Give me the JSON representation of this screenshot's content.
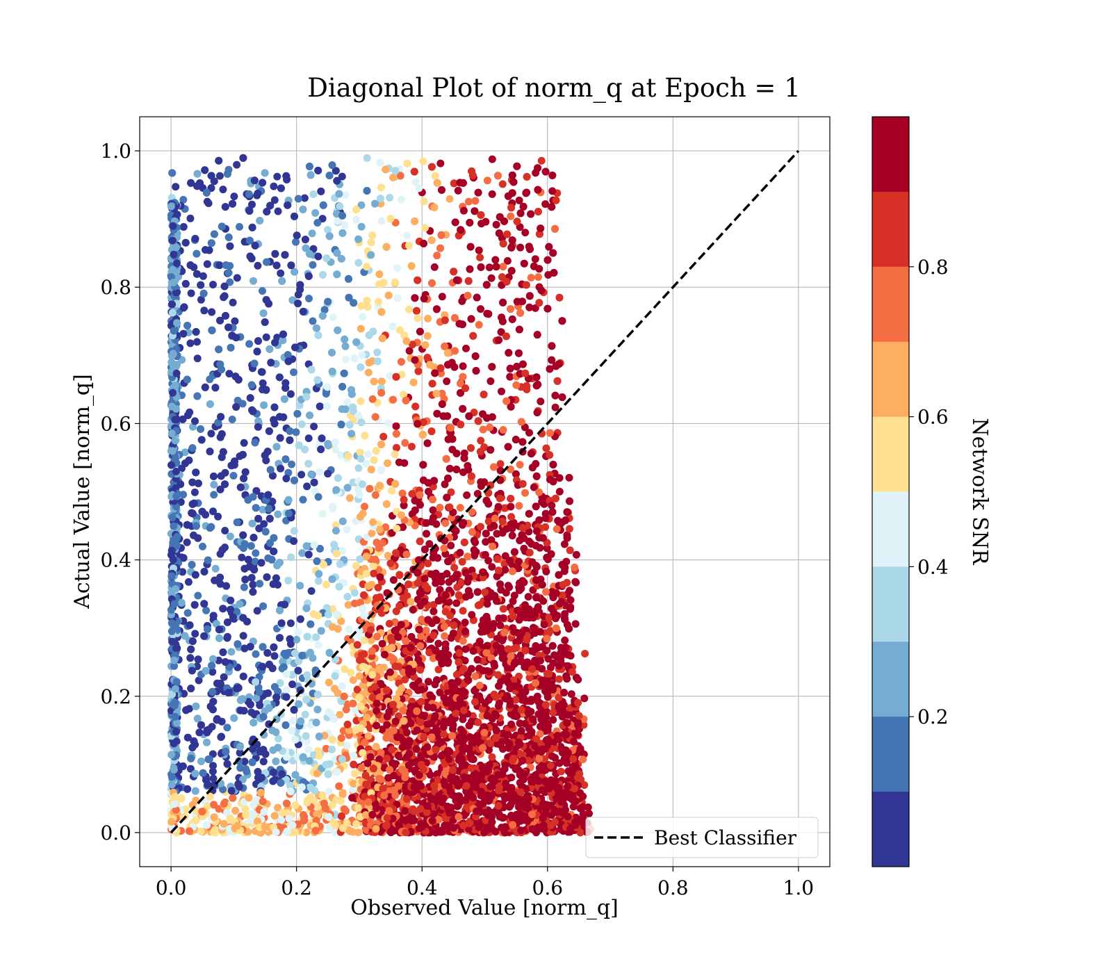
{
  "chart_data": {
    "type": "scatter",
    "title": "Diagonal Plot of norm_q at Epoch = 1",
    "xlabel": "Observed Value [norm_q]",
    "ylabel": "Actual Value [norm_q]",
    "xlim": [
      -0.05,
      1.05
    ],
    "ylim": [
      -0.05,
      1.05
    ],
    "xticks": [
      0.0,
      0.2,
      0.4,
      0.6,
      0.8,
      1.0
    ],
    "yticks": [
      0.0,
      0.2,
      0.4,
      0.6,
      0.8,
      1.0
    ],
    "xtick_labels": [
      "0.0",
      "0.2",
      "0.4",
      "0.6",
      "0.8",
      "1.0"
    ],
    "ytick_labels": [
      "0.0",
      "0.2",
      "0.4",
      "0.6",
      "0.8",
      "1.0"
    ],
    "grid": true,
    "reference_line": {
      "label": "Best Classifier",
      "x": [
        0.0,
        1.0
      ],
      "y": [
        0.0,
        1.0
      ],
      "style": "dashed",
      "color": "#000000"
    },
    "legend": {
      "entries": [
        "Best Classifier"
      ],
      "placement": "lower-right"
    },
    "colorbar": {
      "label": "Network SNR",
      "range": [
        0.0,
        1.0
      ],
      "ticks": [
        0.2,
        0.4,
        0.6,
        0.8
      ],
      "tick_labels": [
        "0.2",
        "0.4",
        "0.6",
        "0.8"
      ],
      "colors": [
        "#a50026",
        "#d73027",
        "#f46d43",
        "#fdae61",
        "#fee090",
        "#e0f3f8",
        "#abd9e9",
        "#74add1",
        "#4575b4",
        "#313695"
      ]
    },
    "point_color_scheme": "RdYlBu (reversed)",
    "observed_range": [
      0.0,
      0.67
    ],
    "actual_range": [
      0.0,
      1.0
    ]
  }
}
